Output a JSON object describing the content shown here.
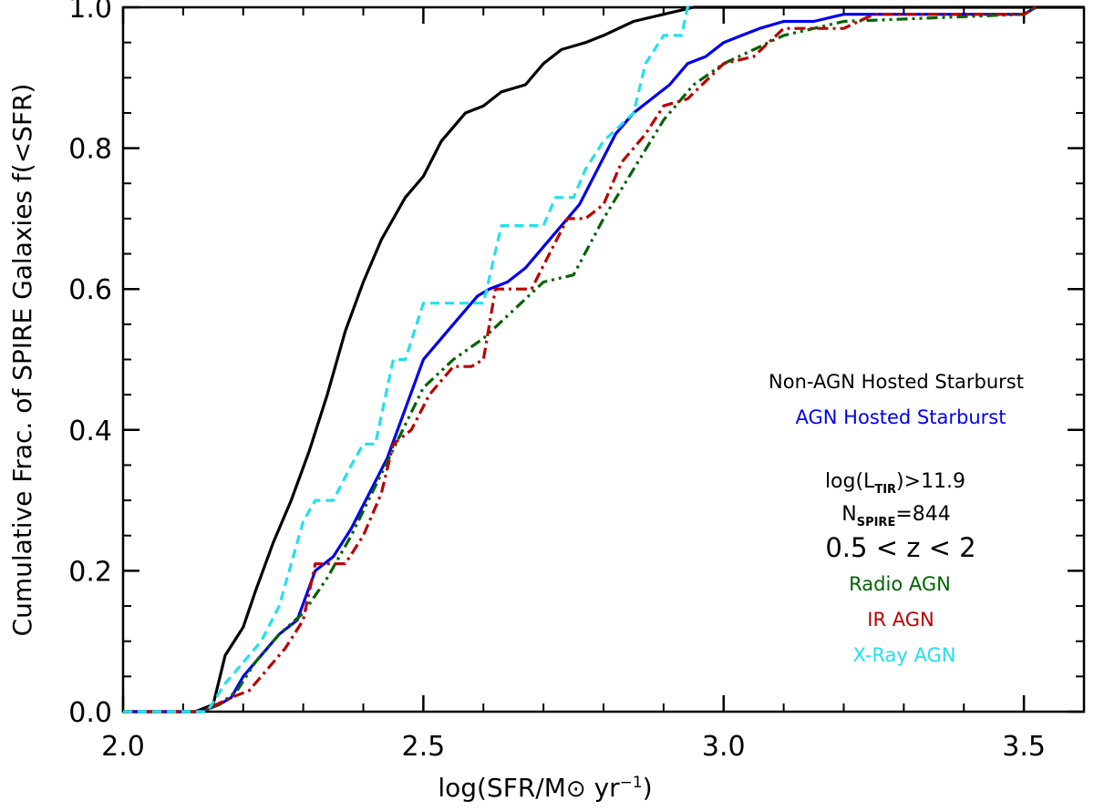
{
  "chart_data": {
    "type": "line",
    "title": "",
    "xlabel": "log(SFR/M⊙ yr⁻¹)",
    "ylabel": "Cumulative Frac. of SPIRE Galaxies f(<SFR)",
    "xlim": [
      2.0,
      3.6
    ],
    "ylim": [
      0.0,
      1.0
    ],
    "xticks": [
      2.0,
      2.5,
      3.0,
      3.5
    ],
    "xtick_labels": [
      "2.0",
      "2.5",
      "3.0",
      "3.5"
    ],
    "yticks": [
      0.0,
      0.2,
      0.4,
      0.6,
      0.8,
      1.0
    ],
    "ytick_labels": [
      "0.0",
      "0.2",
      "0.4",
      "0.6",
      "0.8",
      "1.0"
    ],
    "legend_position": "right",
    "series": [
      {
        "name": "Non-AGN Hosted Starburst",
        "color": "#000000",
        "dash": "solid",
        "x": [
          2.0,
          2.12,
          2.15,
          2.17,
          2.2,
          2.22,
          2.25,
          2.28,
          2.31,
          2.34,
          2.37,
          2.4,
          2.43,
          2.47,
          2.5,
          2.53,
          2.57,
          2.6,
          2.63,
          2.67,
          2.7,
          2.73,
          2.77,
          2.8,
          2.85,
          2.9,
          2.95,
          3.0,
          3.03,
          3.1,
          3.6
        ],
        "y": [
          0.0,
          0.0,
          0.01,
          0.08,
          0.12,
          0.17,
          0.24,
          0.3,
          0.37,
          0.45,
          0.54,
          0.61,
          0.67,
          0.73,
          0.76,
          0.81,
          0.85,
          0.86,
          0.88,
          0.89,
          0.92,
          0.94,
          0.95,
          0.96,
          0.98,
          0.99,
          1.0,
          1.0,
          1.0,
          1.0,
          1.0
        ]
      },
      {
        "name": "AGN Hosted Starburst",
        "color": "#0000ee",
        "dash": "solid",
        "x": [
          2.0,
          2.13,
          2.16,
          2.18,
          2.2,
          2.23,
          2.26,
          2.29,
          2.32,
          2.35,
          2.38,
          2.41,
          2.44,
          2.47,
          2.5,
          2.53,
          2.56,
          2.59,
          2.61,
          2.64,
          2.67,
          2.7,
          2.73,
          2.76,
          2.79,
          2.82,
          2.85,
          2.88,
          2.91,
          2.94,
          2.97,
          3.0,
          3.03,
          3.06,
          3.1,
          3.15,
          3.2,
          3.25,
          3.3,
          3.5,
          3.52
        ],
        "y": [
          0.0,
          0.0,
          0.01,
          0.02,
          0.05,
          0.08,
          0.11,
          0.13,
          0.2,
          0.22,
          0.26,
          0.31,
          0.36,
          0.43,
          0.5,
          0.53,
          0.56,
          0.59,
          0.6,
          0.61,
          0.63,
          0.66,
          0.69,
          0.72,
          0.77,
          0.82,
          0.85,
          0.87,
          0.89,
          0.92,
          0.93,
          0.95,
          0.96,
          0.97,
          0.98,
          0.98,
          0.99,
          0.99,
          0.99,
          0.99,
          1.0
        ]
      },
      {
        "name": "Radio AGN",
        "color": "#006400",
        "dash": "dashdotdot",
        "x": [
          2.0,
          2.13,
          2.16,
          2.19,
          2.22,
          2.26,
          2.3,
          2.34,
          2.38,
          2.42,
          2.46,
          2.5,
          2.55,
          2.6,
          2.65,
          2.7,
          2.75,
          2.8,
          2.85,
          2.9,
          2.95,
          3.0,
          3.05,
          3.1,
          3.15,
          3.2,
          3.5,
          3.52
        ],
        "y": [
          0.0,
          0.0,
          0.01,
          0.03,
          0.07,
          0.11,
          0.14,
          0.19,
          0.25,
          0.32,
          0.39,
          0.46,
          0.5,
          0.53,
          0.57,
          0.61,
          0.62,
          0.7,
          0.77,
          0.84,
          0.89,
          0.92,
          0.94,
          0.96,
          0.97,
          0.98,
          0.99,
          1.0
        ]
      },
      {
        "name": "IR AGN",
        "color": "#bb0000",
        "dash": "dashdot",
        "x": [
          2.0,
          2.13,
          2.18,
          2.21,
          2.24,
          2.27,
          2.3,
          2.32,
          2.35,
          2.37,
          2.4,
          2.43,
          2.45,
          2.48,
          2.51,
          2.55,
          2.58,
          2.6,
          2.62,
          2.65,
          2.68,
          2.71,
          2.74,
          2.77,
          2.8,
          2.83,
          2.87,
          2.9,
          2.94,
          3.0,
          3.05,
          3.1,
          3.2,
          3.25,
          3.5,
          3.52
        ],
        "y": [
          0.0,
          0.0,
          0.02,
          0.03,
          0.06,
          0.09,
          0.13,
          0.21,
          0.21,
          0.21,
          0.25,
          0.31,
          0.38,
          0.4,
          0.45,
          0.49,
          0.49,
          0.5,
          0.6,
          0.6,
          0.6,
          0.65,
          0.7,
          0.7,
          0.72,
          0.78,
          0.82,
          0.86,
          0.87,
          0.92,
          0.93,
          0.97,
          0.97,
          0.99,
          0.99,
          1.0
        ]
      },
      {
        "name": "X-Ray AGN",
        "color": "#22e0ee",
        "dash": "dashed",
        "x": [
          2.0,
          2.14,
          2.17,
          2.2,
          2.23,
          2.26,
          2.28,
          2.3,
          2.32,
          2.35,
          2.38,
          2.4,
          2.42,
          2.45,
          2.47,
          2.5,
          2.55,
          2.6,
          2.63,
          2.68,
          2.7,
          2.72,
          2.75,
          2.77,
          2.8,
          2.85,
          2.87,
          2.9,
          2.93,
          2.94,
          2.95
        ],
        "y": [
          0.0,
          0.0,
          0.04,
          0.07,
          0.1,
          0.15,
          0.21,
          0.27,
          0.3,
          0.3,
          0.35,
          0.38,
          0.38,
          0.5,
          0.5,
          0.58,
          0.58,
          0.58,
          0.69,
          0.69,
          0.69,
          0.73,
          0.73,
          0.77,
          0.81,
          0.85,
          0.92,
          0.96,
          0.96,
          1.0,
          1.0
        ]
      }
    ],
    "legend": [
      {
        "label": "Non-AGN Hosted Starburst",
        "color": "#000000"
      },
      {
        "label": "AGN Hosted Starburst",
        "color": "#0000ee"
      }
    ],
    "annotations": {
      "ltir_main": "log(L",
      "ltir_sub": "TIR",
      "ltir_rest": ")>11.9",
      "n_main": "N",
      "n_sub": "SPIRE",
      "n_rest": "=844",
      "z_range": "0.5 < z < 2"
    },
    "agn_legend": [
      {
        "label": "Radio AGN",
        "color": "#006400"
      },
      {
        "label": "IR AGN",
        "color": "#bb0000"
      },
      {
        "label": "X-Ray AGN",
        "color": "#22e0ee"
      }
    ]
  }
}
